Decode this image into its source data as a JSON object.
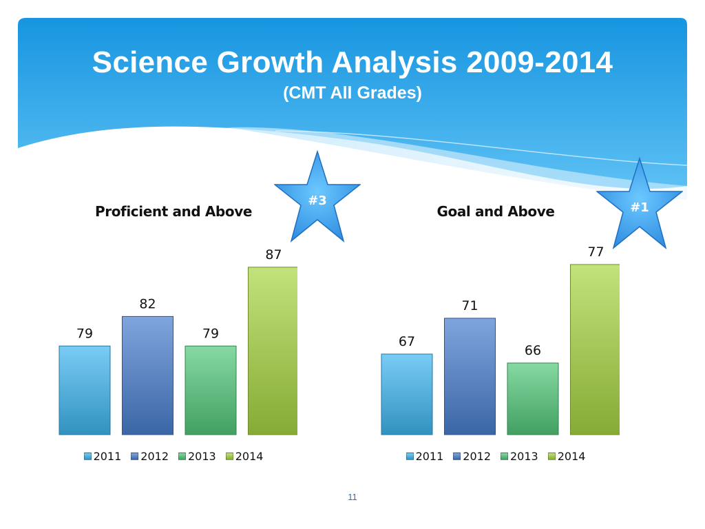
{
  "slide": {
    "title": "Science Growth Analysis 2009-2014",
    "subtitle": "(CMT All Grades)",
    "page_number": "11",
    "banner_color": "#1e9be6"
  },
  "chart_data": [
    {
      "type": "bar",
      "title": "Proficient and Above",
      "categories": [
        "2011",
        "2012",
        "2013",
        "2014"
      ],
      "values": [
        79,
        82,
        79,
        87
      ],
      "data_labels": [
        "79",
        "82",
        "79",
        "87"
      ],
      "ylim": [
        70,
        90
      ],
      "grid": false,
      "legend": "bottom",
      "colors": [
        "#3fb6f0",
        "#4a7fcf",
        "#52c87a",
        "#a8d642"
      ],
      "badge": {
        "label": "#3",
        "icon": "star-icon"
      }
    },
    {
      "type": "bar",
      "title": "Goal and Above",
      "categories": [
        "2011",
        "2012",
        "2013",
        "2014"
      ],
      "values": [
        67,
        71,
        66,
        77
      ],
      "data_labels": [
        "67",
        "71",
        "66",
        "77"
      ],
      "ylim": [
        58,
        80
      ],
      "grid": false,
      "legend": "bottom",
      "colors": [
        "#3fb6f0",
        "#4a7fcf",
        "#52c87a",
        "#a8d642"
      ],
      "badge": {
        "label": "#1",
        "icon": "star-icon"
      }
    }
  ]
}
